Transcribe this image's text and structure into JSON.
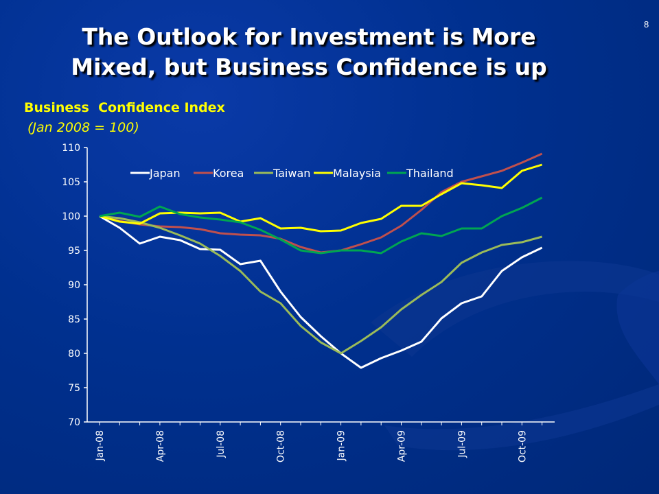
{
  "slide": {
    "title_line1": "The Outlook for Investment is More",
    "title_line2": "Mixed, but Business Confidence is up",
    "page_number": "8"
  },
  "chart_data": {
    "type": "line",
    "title": "Business  Confidence Index",
    "subtitle": "(Jan 2008 = 100)",
    "ylim": [
      70,
      110
    ],
    "yticks": [
      70,
      75,
      80,
      85,
      90,
      95,
      100,
      105,
      110
    ],
    "x": [
      "Jan-08",
      "Feb-08",
      "Mar-08",
      "Apr-08",
      "May-08",
      "Jun-08",
      "Jul-08",
      "Aug-08",
      "Sep-08",
      "Oct-08",
      "Nov-08",
      "Dec-08",
      "Jan-09",
      "Feb-09",
      "Mar-09",
      "Apr-09",
      "May-09",
      "Jun-09",
      "Jul-09",
      "Aug-09",
      "Sep-09",
      "Oct-09",
      "Nov-09"
    ],
    "xtick_labels": [
      "Jan-08",
      "Apr-08",
      "Jul-08",
      "Oct-08",
      "Jan-09",
      "Apr-09",
      "Jul-09",
      "Oct-09"
    ],
    "grid": false,
    "legend_placement": "top",
    "series": [
      {
        "name": "Japan",
        "color": "#ffffff",
        "values": [
          100,
          98.3,
          96,
          97,
          96.5,
          95.2,
          95.1,
          93,
          93.5,
          89,
          85.3,
          82.5,
          80,
          77.9,
          79.3,
          80.4,
          81.7,
          85.1,
          87.3,
          88.3,
          92,
          94,
          95.4
        ]
      },
      {
        "name": "Korea",
        "color": "#c0504d",
        "values": [
          100,
          99.3,
          98.8,
          98.5,
          98.4,
          98.1,
          97.5,
          97.3,
          97.2,
          96.7,
          95.5,
          94.7,
          95.0,
          95.9,
          96.9,
          98.6,
          100.9,
          103.5,
          105.0,
          105.8,
          106.6,
          107.8,
          109.1
        ]
      },
      {
        "name": "Taiwan",
        "color": "#9bbb59",
        "values": [
          100,
          99.7,
          99.1,
          98.3,
          97.2,
          96.0,
          94.2,
          92.0,
          89.0,
          87.3,
          84.0,
          81.6,
          80.0,
          81.8,
          83.8,
          86.4,
          88.5,
          90.4,
          93.2,
          94.7,
          95.8,
          96.2,
          97.0
        ]
      },
      {
        "name": "Malaysia",
        "color": "#ffff00",
        "values": [
          100,
          99.2,
          98.9,
          100.4,
          100.5,
          100.4,
          100.5,
          99.2,
          99.7,
          98.2,
          98.3,
          97.8,
          97.9,
          99.0,
          99.6,
          101.5,
          101.5,
          103.2,
          104.8,
          104.5,
          104.1,
          106.6,
          107.5
        ]
      },
      {
        "name": "Thailand",
        "color": "#00a651",
        "values": [
          100,
          100.5,
          99.9,
          101.4,
          100.3,
          99.8,
          99.5,
          99.1,
          98.0,
          96.6,
          95.0,
          94.6,
          95.0,
          95.0,
          94.6,
          96.3,
          97.5,
          97.1,
          98.2,
          98.2,
          100.0,
          101.2,
          102.7
        ]
      }
    ]
  }
}
